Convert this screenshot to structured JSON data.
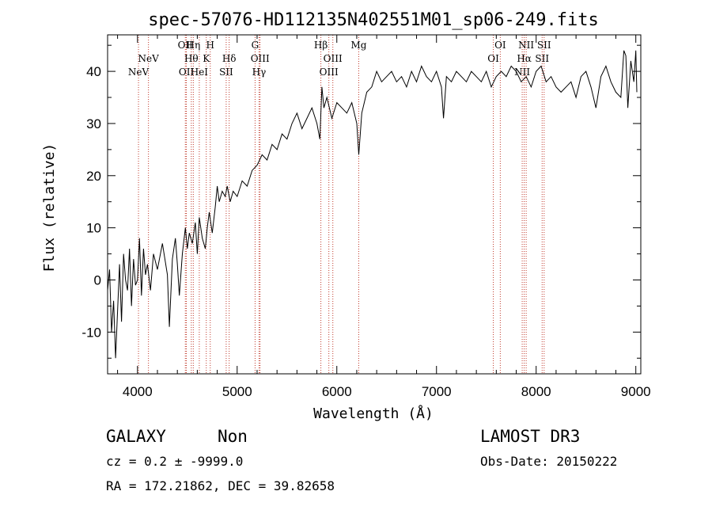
{
  "chart_data": {
    "type": "line",
    "title": "spec-57076-HD112135N402551M01_sp06-249.fits",
    "xlabel": "Wavelength (Å)",
    "ylabel": "Flux (relative)",
    "xlim": [
      3700,
      9050
    ],
    "ylim": [
      -18,
      47
    ],
    "xticks": [
      4000,
      5000,
      6000,
      7000,
      8000,
      9000
    ],
    "yticks": [
      -10,
      0,
      10,
      20,
      30,
      40
    ],
    "series": [
      {
        "name": "flux",
        "x": [
          3700,
          3720,
          3740,
          3760,
          3780,
          3800,
          3820,
          3840,
          3860,
          3880,
          3900,
          3920,
          3940,
          3960,
          3980,
          4000,
          4020,
          4040,
          4060,
          4080,
          4100,
          4130,
          4160,
          4200,
          4250,
          4300,
          4320,
          4350,
          4380,
          4400,
          4420,
          4450,
          4480,
          4500,
          4520,
          4550,
          4580,
          4600,
          4620,
          4650,
          4680,
          4700,
          4720,
          4750,
          4780,
          4800,
          4820,
          4850,
          4880,
          4900,
          4930,
          4960,
          5000,
          5050,
          5100,
          5150,
          5200,
          5250,
          5300,
          5350,
          5400,
          5450,
          5500,
          5550,
          5600,
          5650,
          5700,
          5750,
          5800,
          5830,
          5850,
          5870,
          5900,
          5950,
          6000,
          6050,
          6100,
          6150,
          6200,
          6220,
          6250,
          6300,
          6350,
          6400,
          6450,
          6500,
          6550,
          6600,
          6650,
          6700,
          6750,
          6800,
          6850,
          6900,
          6950,
          7000,
          7050,
          7070,
          7100,
          7150,
          7200,
          7250,
          7300,
          7350,
          7400,
          7450,
          7500,
          7550,
          7600,
          7650,
          7700,
          7750,
          7800,
          7850,
          7900,
          7950,
          8000,
          8050,
          8100,
          8150,
          8200,
          8250,
          8300,
          8350,
          8400,
          8450,
          8500,
          8550,
          8600,
          8650,
          8700,
          8750,
          8800,
          8850,
          8880,
          8900,
          8920,
          8950,
          8980,
          9000,
          9010
        ],
        "values": [
          -2,
          2,
          -10,
          -4,
          -15,
          -6,
          3,
          -8,
          5,
          0,
          -2,
          6,
          -5,
          4,
          -1,
          0,
          8,
          -3,
          6,
          1,
          3,
          -2,
          5,
          2,
          7,
          1,
          -9,
          4,
          8,
          3,
          -3,
          5,
          10,
          6,
          9,
          7,
          11,
          5,
          12,
          8,
          6,
          10,
          13,
          9,
          14,
          18,
          15,
          17,
          16,
          18,
          15,
          17,
          16,
          19,
          18,
          21,
          22,
          24,
          23,
          26,
          25,
          28,
          27,
          30,
          32,
          29,
          31,
          33,
          30,
          27,
          37,
          33,
          35,
          31,
          34,
          33,
          32,
          34,
          30,
          24,
          32,
          36,
          37,
          40,
          38,
          39,
          40,
          38,
          39,
          37,
          40,
          38,
          41,
          39,
          38,
          40,
          37,
          31,
          39,
          38,
          40,
          39,
          38,
          40,
          39,
          38,
          40,
          37,
          39,
          40,
          39,
          41,
          40,
          38,
          39,
          37,
          40,
          41,
          38,
          39,
          37,
          36,
          37,
          38,
          35,
          39,
          40,
          37,
          33,
          39,
          41,
          38,
          36,
          35,
          44,
          43,
          33,
          42,
          38,
          44,
          36
        ]
      }
    ],
    "line_markers": [
      {
        "label": "NeV",
        "wavelength": 3426,
        "row": 3,
        "visible": false
      },
      {
        "label": "NeV",
        "wavelength": 4010,
        "row": 3
      },
      {
        "label": "NeV",
        "wavelength": 4110,
        "row": 2
      },
      {
        "label": "OII",
        "wavelength": 4480,
        "row": 1
      },
      {
        "label": "OII",
        "wavelength": 4490,
        "row": 3
      },
      {
        "label": "Hη",
        "wavelength": 4560,
        "row": 1
      },
      {
        "label": "Hθ",
        "wavelength": 4540,
        "row": 2
      },
      {
        "label": "HeI",
        "wavelength": 4620,
        "row": 3
      },
      {
        "label": "K",
        "wavelength": 4690,
        "row": 2
      },
      {
        "label": "H",
        "wavelength": 4730,
        "row": 1
      },
      {
        "label": "SII",
        "wavelength": 4890,
        "row": 3
      },
      {
        "label": "Hδ",
        "wavelength": 4920,
        "row": 2
      },
      {
        "label": "G",
        "wavelength": 5180,
        "row": 1
      },
      {
        "label": "OIII",
        "wavelength": 5230,
        "row": 2
      },
      {
        "label": "Hγ",
        "wavelength": 5220,
        "row": 3
      },
      {
        "label": "Hβ",
        "wavelength": 5840,
        "row": 1
      },
      {
        "label": "OIII",
        "wavelength": 5960,
        "row": 2
      },
      {
        "label": "OIII",
        "wavelength": 5920,
        "row": 3
      },
      {
        "label": "Mg",
        "wavelength": 6220,
        "row": 1
      },
      {
        "label": "OI",
        "wavelength": 7640,
        "row": 1
      },
      {
        "label": "OI",
        "wavelength": 7570,
        "row": 2
      },
      {
        "label": "NII",
        "wavelength": 7900,
        "row": 1
      },
      {
        "label": "Hα",
        "wavelength": 7880,
        "row": 2
      },
      {
        "label": "NII",
        "wavelength": 7860,
        "row": 3
      },
      {
        "label": "SII",
        "wavelength": 8080,
        "row": 1
      },
      {
        "label": "SII",
        "wavelength": 8060,
        "row": 2
      }
    ],
    "line_marker_color": "#c0392b"
  },
  "info": {
    "object_class": "GALAXY",
    "subclass": "Non",
    "survey": "LAMOST DR3",
    "cz": "cz = 0.2 ± -9999.0",
    "obs_date": "Obs-Date: 20150222",
    "coords": "RA = 172.21862, DEC =  39.82658"
  }
}
